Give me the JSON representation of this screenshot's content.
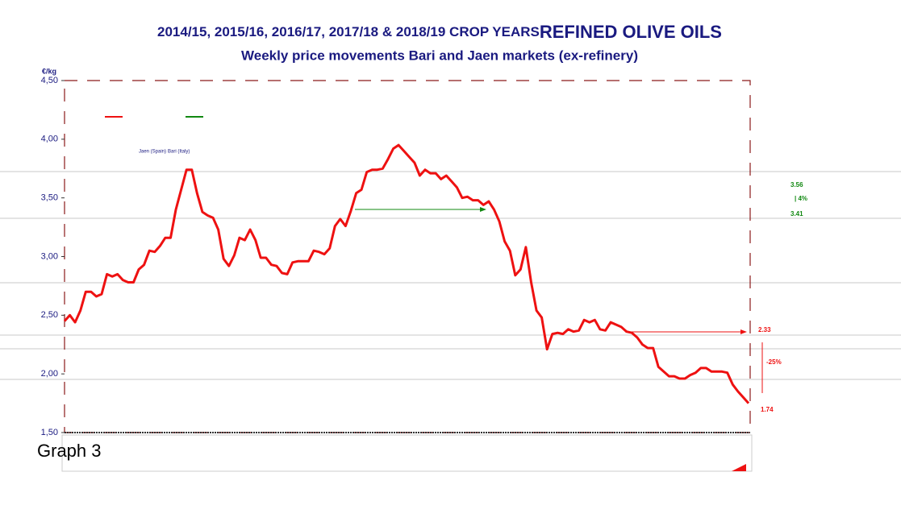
{
  "chart_data": {
    "type": "line",
    "title": "2014/15, 2015/16, 2016/17, 2017/18 & 2018/19 CROP YEARS",
    "title_emphasis": "REFINED OLIVE OILS",
    "subtitle": "Weekly price movements Bari and Jaen markets (ex-refinery)",
    "y_label": "€/kg",
    "caption": "Graph 3",
    "categories": [
      null,
      null,
      null,
      null,
      null,
      null,
      null,
      null,
      null,
      null,
      null,
      null,
      null,
      null,
      null,
      null,
      null,
      null,
      null,
      null,
      null,
      null,
      null,
      null,
      null,
      null,
      null,
      null,
      null,
      null,
      null,
      null,
      null,
      null,
      null,
      null,
      null,
      null,
      null,
      null,
      null,
      null,
      null,
      null,
      null,
      null,
      null,
      null,
      null,
      null,
      null,
      null,
      null,
      null,
      null,
      null,
      null,
      null,
      null,
      null,
      null,
      null,
      null,
      null,
      null,
      null,
      null,
      null,
      null,
      null,
      null,
      null,
      null,
      null,
      null,
      null,
      null,
      null,
      null,
      null,
      null,
      null,
      null,
      null,
      null,
      null,
      null,
      null,
      null,
      null,
      null,
      null,
      null,
      null,
      null,
      null,
      null,
      null,
      null,
      null,
      null,
      null,
      null,
      null,
      null,
      null,
      null,
      null,
      null,
      null,
      null,
      null,
      null,
      null,
      null,
      null,
      null,
      null,
      null,
      null,
      null,
      null,
      null,
      null,
      null,
      null,
      null,
      null,
      null,
      null
    ],
    "series": [
      {
        "name": "Jaen (Spain)",
        "color": "#ee1111",
        "values": [
          2.45,
          2.5,
          2.44,
          2.54,
          2.7,
          2.7,
          2.66,
          2.68,
          2.85,
          2.83,
          2.85,
          2.8,
          2.78,
          2.78,
          2.89,
          2.93,
          3.05,
          3.04,
          3.09,
          3.16,
          3.16,
          3.4,
          3.57,
          3.74,
          3.74,
          3.54,
          3.38,
          3.35,
          3.33,
          3.23,
          2.98,
          2.92,
          3.01,
          3.16,
          3.14,
          3.23,
          3.14,
          2.99,
          2.99,
          2.93,
          2.92,
          2.86,
          2.85,
          2.95,
          2.96,
          2.96,
          2.96,
          3.05,
          3.04,
          3.02,
          3.07,
          3.26,
          3.32,
          3.26,
          3.39,
          3.54,
          3.57,
          3.72,
          3.74,
          3.74,
          3.75,
          3.83,
          3.92,
          3.95,
          3.9,
          3.85,
          3.8,
          3.69,
          3.74,
          3.71,
          3.71,
          3.66,
          3.69,
          3.64,
          3.59,
          3.5,
          3.51,
          3.48,
          3.48,
          3.44,
          3.47,
          3.4,
          3.3,
          3.13,
          3.05,
          2.84,
          2.89,
          3.08,
          2.78,
          2.54,
          2.48,
          2.21,
          2.34,
          2.35,
          2.34,
          2.38,
          2.36,
          2.37,
          2.46,
          2.44,
          2.46,
          2.38,
          2.37,
          2.44,
          2.42,
          2.4,
          2.36,
          2.35,
          2.31,
          2.25,
          2.22,
          2.22,
          2.06,
          2.02,
          1.98,
          1.98,
          1.96,
          1.96,
          1.99,
          2.01,
          2.05,
          2.05,
          2.02,
          2.02,
          2.02,
          2.01,
          1.91,
          1.85,
          1.8,
          1.75
        ]
      },
      {
        "name": "Bari (Italy)",
        "color": "#118811"
      }
    ],
    "ylim": [
      1.5,
      4.5
    ],
    "yticks": [
      {
        "value": 1.5,
        "label": "1,50"
      },
      {
        "value": 2,
        "label": "2,00"
      },
      {
        "value": 2.5,
        "label": "2,50"
      },
      {
        "value": 3,
        "label": "3,00"
      },
      {
        "value": 3.5,
        "label": "3,50"
      },
      {
        "value": 4,
        "label": "4,00"
      },
      {
        "value": 4.5,
        "label": "4,50"
      }
    ],
    "annotations": [
      {
        "text": "3.56",
        "color": "#118811"
      },
      {
        "text": "|  4%",
        "color": "#118811"
      },
      {
        "text": "3.41",
        "color": "#118811"
      },
      {
        "text": "2.33",
        "color": "#ee1111"
      },
      {
        "text": "-25%",
        "color": "#ee1111"
      },
      {
        "text": "1.74",
        "color": "#ee1111"
      }
    ]
  }
}
